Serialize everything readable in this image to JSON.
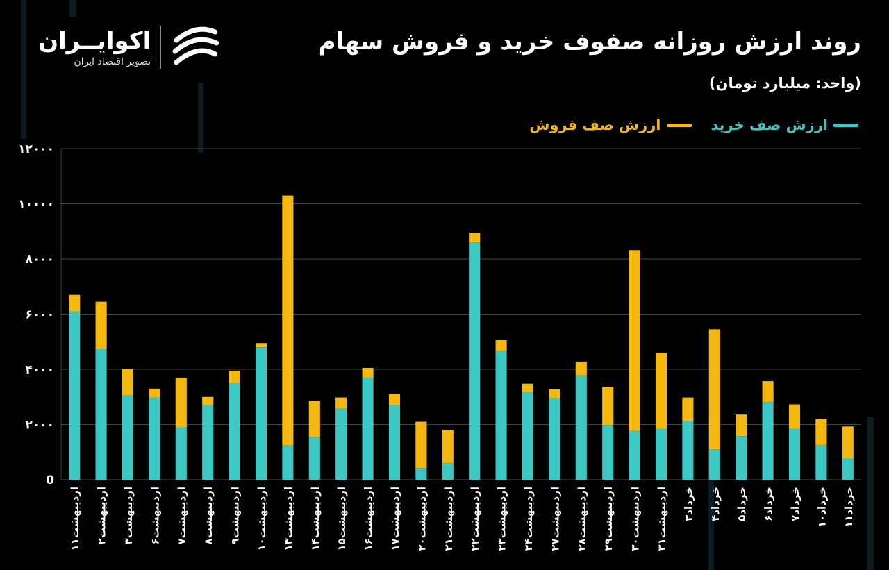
{
  "title": "روند ارزش روزانه صفوف خرید و فروش سهام",
  "unit": "(واحد: میلیارد تومان)",
  "logo": {
    "name": "اکوایــران",
    "subtitle": "تصویر اقتصاد ایران",
    "icon": "ecoiran-swirl-icon"
  },
  "colors": {
    "background": "#000000",
    "buy": "#3cc7c4",
    "sell": "#f5b80f",
    "grid": "#444444",
    "text": "#ffffff"
  },
  "chart_data": {
    "type": "bar",
    "stacked": true,
    "title": "روند ارزش روزانه صفوف خرید و فروش سهام",
    "ylabel": "(واحد: میلیارد تومان)",
    "xlabel": "",
    "ylim": [
      0,
      12000
    ],
    "yticks": [
      0,
      2000,
      4000,
      6000,
      8000,
      10000,
      12000
    ],
    "ytick_labels": [
      "0",
      "۲۰۰۰",
      "۴۰۰۰",
      "۶۰۰۰",
      "۸۰۰۰",
      "۱۰۰۰۰",
      "۱۲۰۰۰"
    ],
    "grid": true,
    "legend_position": "top-right",
    "categories": [
      "اردیبهشت۱۱",
      "اردیبهشت۲",
      "اردیبهشت۳",
      "اردیبهشت۶",
      "اردیبهشت۷",
      "اردیبهشت۸",
      "اردیبهشت۹",
      "اردیبهشت۱۰",
      "اردیبهشت۱۳",
      "اردیبهشت۱۴",
      "اردیبهشت۱۵",
      "اردیبهشت۱۶",
      "اردیبهشت۱۷",
      "اردیبهشت۲۰",
      "اردیبهشت۲۱",
      "اردیبهشت۲۲",
      "اردیبهشت۲۳",
      "اردیبهشت۲۴",
      "اردیبهشت۲۷",
      "اردیبهشت۲۸",
      "اردیبهشت۲۹",
      "اردیبهشت۳۰",
      "اردیبهشت۳۱",
      "خرداد۳",
      "خرداد۴",
      "خرداد۵",
      "خرداد۶",
      "خرداد۷",
      "خرداد۱۰",
      "خرداد۱۱"
    ],
    "series": [
      {
        "name": "ارزش صف خرید",
        "color": "#3cc7c4",
        "values": [
          6100,
          4750,
          3050,
          2980,
          1900,
          2700,
          3500,
          4800,
          1250,
          1550,
          2580,
          3700,
          2700,
          420,
          600,
          8600,
          4680,
          3180,
          2950,
          3780,
          1980,
          1770,
          1850,
          2130,
          1100,
          1580,
          2820,
          1850,
          1260,
          780
        ]
      },
      {
        "name": "ارزش صف فروش",
        "color": "#f5b80f",
        "values": [
          600,
          1700,
          950,
          320,
          1800,
          300,
          450,
          150,
          9050,
          1300,
          400,
          350,
          400,
          1680,
          1200,
          350,
          380,
          300,
          330,
          500,
          1380,
          6550,
          2750,
          850,
          4350,
          780,
          750,
          880,
          930,
          1150
        ]
      }
    ]
  }
}
